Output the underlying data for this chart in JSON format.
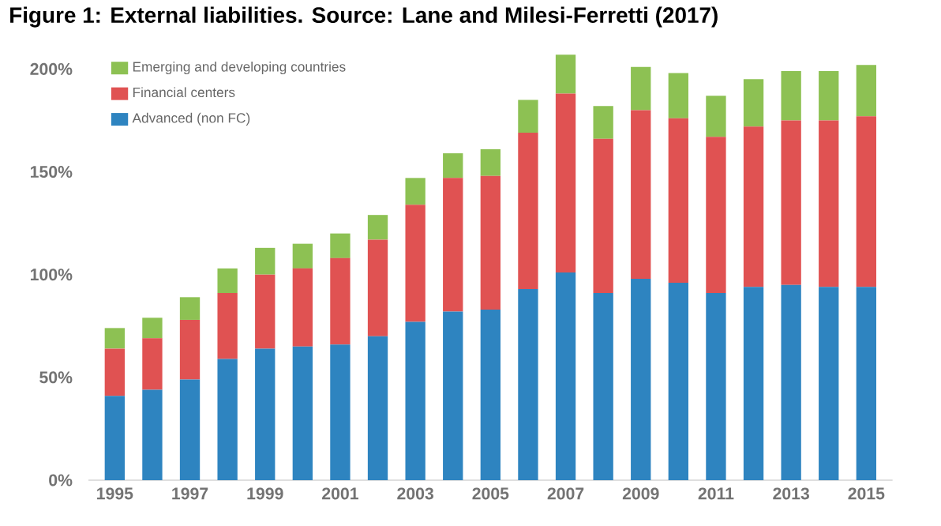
{
  "chart_data": {
    "type": "bar",
    "stacked": true,
    "title": "Figure 1: External liabilities. Source: Lane and Milesi-Ferretti (2017)",
    "categories": [
      "1995",
      null,
      "1997",
      null,
      "1999",
      null,
      "2001",
      null,
      "2003",
      null,
      "2005",
      null,
      "2007",
      null,
      "2009",
      null,
      "2011",
      null,
      "2013",
      null,
      "2015"
    ],
    "series": [
      {
        "name": "Advanced (non FC)",
        "color": "#2e84c0",
        "values": [
          41,
          44,
          49,
          59,
          64,
          65,
          66,
          70,
          77,
          82,
          83,
          93,
          101,
          91,
          98,
          96,
          91,
          94,
          95,
          94,
          94
        ]
      },
      {
        "name": "Financial centers",
        "color": "#e05252",
        "values": [
          23,
          25,
          29,
          32,
          36,
          38,
          42,
          47,
          57,
          65,
          65,
          76,
          87,
          75,
          82,
          80,
          76,
          78,
          80,
          81,
          83
        ]
      },
      {
        "name": "Emerging and developing countries",
        "color": "#8dc153",
        "values": [
          10,
          10,
          11,
          12,
          13,
          12,
          12,
          12,
          13,
          12,
          13,
          16,
          19,
          16,
          21,
          22,
          20,
          23,
          24,
          24,
          25
        ]
      }
    ],
    "ylim": [
      0,
      210
    ],
    "yticks": [
      {
        "value": 0,
        "label": "0%"
      },
      {
        "value": 50,
        "label": "50%"
      },
      {
        "value": 100,
        "label": "100%"
      },
      {
        "value": 150,
        "label": "150%"
      },
      {
        "value": 200,
        "label": "200%"
      }
    ],
    "legend": "top left"
  }
}
